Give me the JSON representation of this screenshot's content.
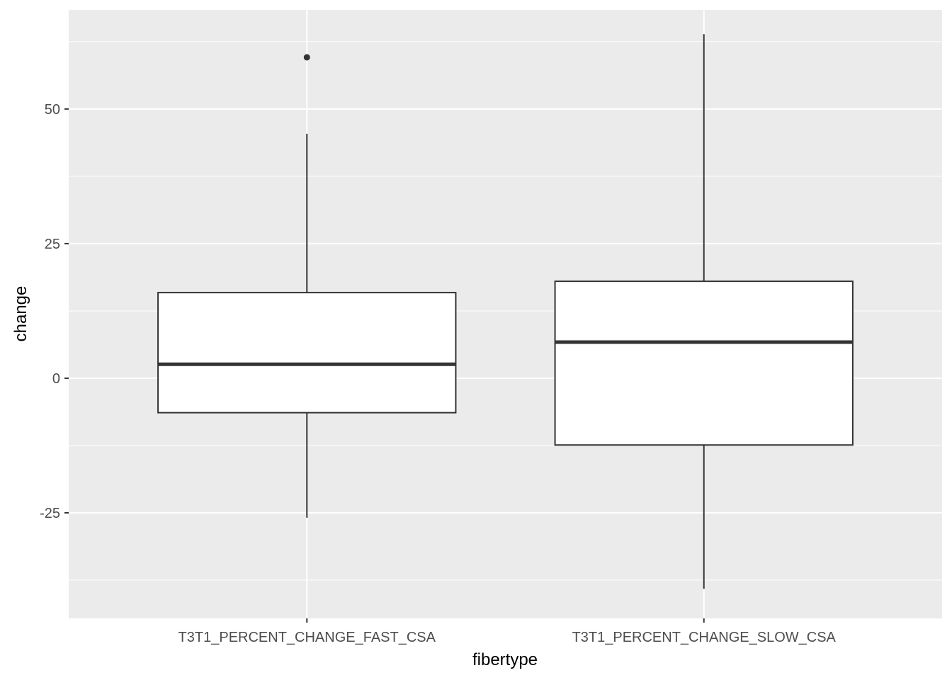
{
  "chart_data": {
    "type": "boxplot",
    "title": "",
    "xlabel": "fibertype",
    "ylabel": "change",
    "categories": [
      "T3T1_PERCENT_CHANGE_FAST_CSA",
      "T3T1_PERCENT_CHANGE_SLOW_CSA"
    ],
    "boxes": [
      {
        "category": "T3T1_PERCENT_CHANGE_FAST_CSA",
        "whisker_low": -25.9,
        "q1": -6.4,
        "median": 2.6,
        "q3": 15.9,
        "whisker_high": 45.4,
        "outliers": [
          59.6
        ]
      },
      {
        "category": "T3T1_PERCENT_CHANGE_SLOW_CSA",
        "whisker_low": -39.1,
        "q1": -12.4,
        "median": 6.7,
        "q3": 18.0,
        "whisker_high": 63.9,
        "outliers": []
      }
    ],
    "ylim": [
      -44.6,
      68.4
    ],
    "yticks": [
      -25,
      0,
      25,
      50
    ],
    "ytick_labels": [
      "-25",
      "0",
      "25",
      "50"
    ],
    "grid": true,
    "legend": "none",
    "colors": {
      "panel": "#ebebeb",
      "grid": "#ffffff",
      "box_fill": "#ffffff",
      "box_line": "#333333",
      "tick_text": "#4d4d4d",
      "title_text": "#000000"
    }
  }
}
